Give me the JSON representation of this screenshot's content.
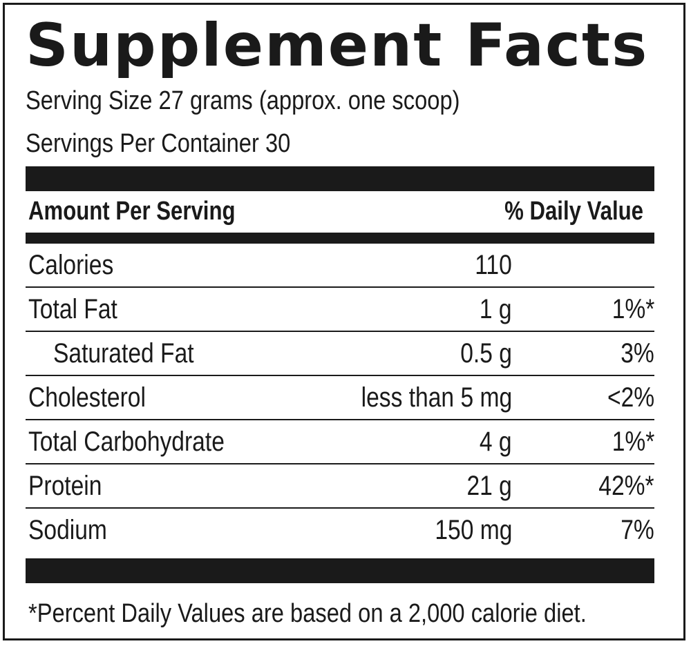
{
  "label": {
    "title": "Supplement Facts",
    "serving_size": "Serving Size 27 grams (approx. one scoop)",
    "servings_per_container": "Servings Per Container 30",
    "header_left": "Amount Per Serving",
    "header_right": "% Daily Value",
    "rows": [
      {
        "name": "Calories",
        "amount": "110",
        "dv": ""
      },
      {
        "name": "Total Fat",
        "amount": "1 g",
        "dv": "1%*"
      },
      {
        "name": "Saturated Fat",
        "amount": "0.5 g",
        "dv": "3%"
      },
      {
        "name": "Cholesterol",
        "amount": "less than 5 mg",
        "dv": "<2%"
      },
      {
        "name": "Total Carbohydrate",
        "amount": "4 g",
        "dv": "1%*"
      },
      {
        "name": "Protein",
        "amount": "21 g",
        "dv": "42%*"
      },
      {
        "name": "Sodium",
        "amount": "150 mg",
        "dv": "7%"
      }
    ],
    "footnote": "*Percent Daily Values are based on a 2,000 calorie diet."
  },
  "colors": {
    "ink": "#1a1a1a",
    "background": "#ffffff"
  }
}
